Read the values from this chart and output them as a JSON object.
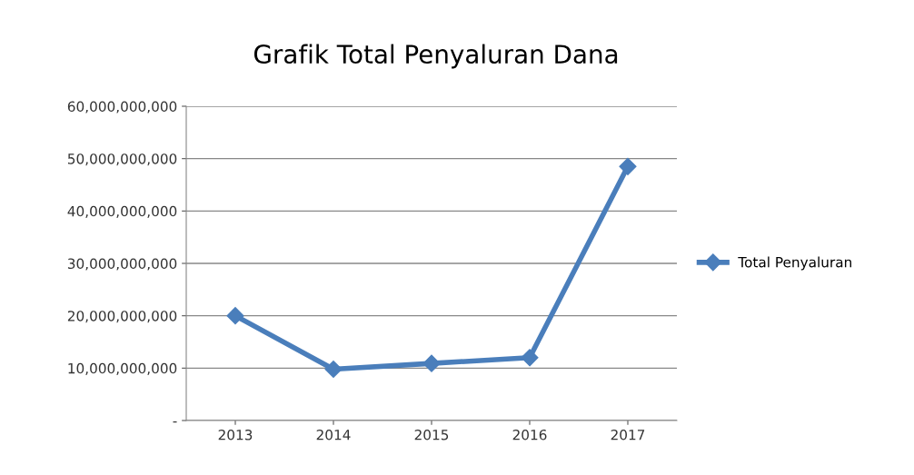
{
  "chart_data": {
    "type": "line",
    "title": "Grafik Total Penyaluran Dana",
    "categories": [
      "2013",
      "2014",
      "2015",
      "2016",
      "2017"
    ],
    "series": [
      {
        "name": "Total Penyaluran",
        "color": "#4a7ebb",
        "values": [
          20000000000,
          9800000000,
          10900000000,
          12000000000,
          48500000000
        ]
      }
    ],
    "ylim": [
      0,
      60000000000
    ],
    "yticks": [
      {
        "value": 0,
        "label": "-"
      },
      {
        "value": 10000000000,
        "label": "10,000,000,000"
      },
      {
        "value": 20000000000,
        "label": "20,000,000,000"
      },
      {
        "value": 30000000000,
        "label": "30,000,000,000"
      },
      {
        "value": 40000000000,
        "label": "40,000,000,000"
      },
      {
        "value": 50000000000,
        "label": "50,000,000,000"
      },
      {
        "value": 60000000000,
        "label": "60,000,000,000"
      }
    ],
    "grid": "y",
    "legend": "right",
    "marker": "diamond",
    "line_style": "solid"
  }
}
